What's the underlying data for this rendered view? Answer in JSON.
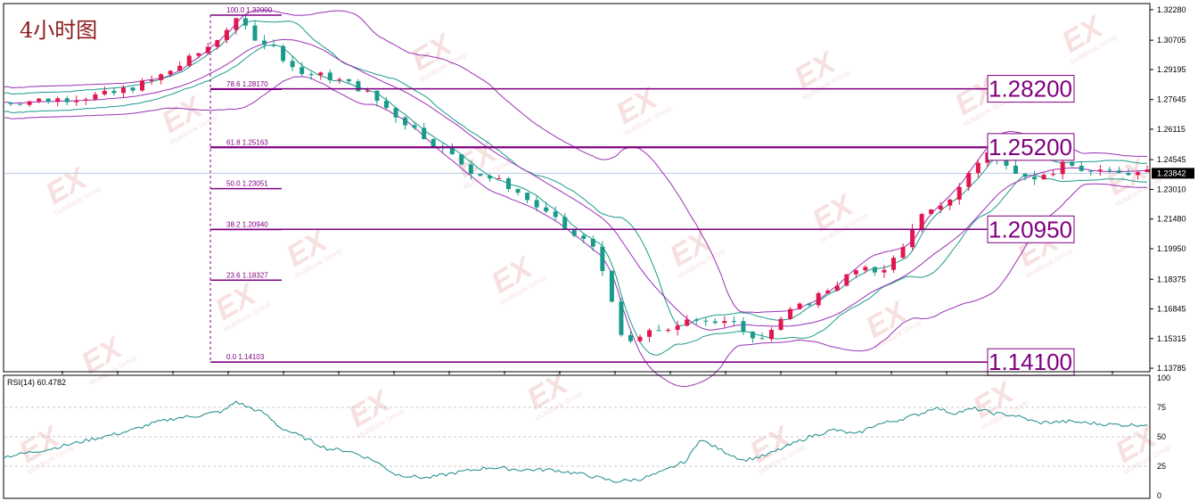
{
  "title": "4小时图",
  "watermark": {
    "text": "EX",
    "sub": "MultiBank Group",
    "color": "#f0c8c8"
  },
  "colors": {
    "bull": "#e0174f",
    "bear": "#1a9a8a",
    "fib": "#800080",
    "band_outer": "#9b30b5",
    "band_inner": "#1a9a8a",
    "rsi": "#1a8a8a",
    "grid": "#c8c8c8",
    "current": "#000000"
  },
  "price_axis": {
    "ticks": [
      "1.32280",
      "1.30705",
      "1.29195",
      "1.27645",
      "1.26115",
      "1.24545",
      "1.23010",
      "1.21480",
      "1.19950",
      "1.18375",
      "1.16845",
      "1.15315",
      "1.13785"
    ],
    "current": "1.23842"
  },
  "fib_levels": [
    {
      "label": "100.0  1.32000",
      "value": 1.32
    },
    {
      "label": "78.6  1.28170",
      "value": 1.2817
    },
    {
      "label": "61.8  1.25163",
      "value": 1.25163
    },
    {
      "label": "50.0  1.23051",
      "value": 1.23051
    },
    {
      "label": "38.2  1.20940",
      "value": 1.2094
    },
    {
      "label": "23.6  1.18327",
      "value": 1.18327
    },
    {
      "label": "0.0  1.14103",
      "value": 1.14103
    }
  ],
  "key_levels": [
    {
      "label": "1.28200",
      "value": 1.282
    },
    {
      "label": "1.25200",
      "value": 1.252
    },
    {
      "label": "1.20950",
      "value": 1.2095
    },
    {
      "label": "1.14100",
      "value": 1.141
    }
  ],
  "rsi": {
    "label": "RSI(14) 60.4782",
    "ticks": [
      "100",
      "75",
      "50",
      "25",
      "0"
    ],
    "levels": [
      75,
      50,
      25
    ]
  },
  "chart_data": {
    "type": "candlestick",
    "timeframe_label": "4小时图",
    "y_range": [
      1.1365,
      1.3255
    ],
    "fibonacci": [
      1.32,
      1.2817,
      1.25163,
      1.23051,
      1.2094,
      1.18327,
      1.14103
    ],
    "horizontal_levels": [
      1.282,
      1.252,
      1.2095,
      1.141
    ],
    "last_price": 1.23842,
    "close_path": [
      [
        0,
        1.275
      ],
      [
        20,
        1.277
      ],
      [
        35,
        1.279
      ],
      [
        40,
        1.282
      ],
      [
        48,
        1.286
      ],
      [
        60,
        1.297
      ],
      [
        67,
        1.305
      ],
      [
        73,
        1.315
      ],
      [
        76,
        1.317
      ],
      [
        80,
        1.31
      ],
      [
        88,
        1.302
      ],
      [
        95,
        1.29
      ],
      [
        105,
        1.288
      ],
      [
        115,
        1.282
      ],
      [
        128,
        1.266
      ],
      [
        140,
        1.252
      ],
      [
        150,
        1.24
      ],
      [
        162,
        1.232
      ],
      [
        172,
        1.22
      ],
      [
        183,
        1.206
      ],
      [
        190,
        1.2
      ],
      [
        193,
        1.185
      ],
      [
        197,
        1.155
      ],
      [
        203,
        1.15
      ],
      [
        208,
        1.16
      ],
      [
        214,
        1.155
      ],
      [
        220,
        1.165
      ],
      [
        228,
        1.162
      ],
      [
        235,
        1.16
      ],
      [
        240,
        1.155
      ],
      [
        244,
        1.155
      ],
      [
        250,
        1.165
      ],
      [
        256,
        1.17
      ],
      [
        265,
        1.18
      ],
      [
        273,
        1.188
      ],
      [
        280,
        1.188
      ],
      [
        287,
        1.196
      ],
      [
        292,
        1.215
      ],
      [
        300,
        1.22
      ],
      [
        310,
        1.24
      ],
      [
        315,
        1.25
      ],
      [
        320,
        1.242
      ],
      [
        325,
        1.24
      ],
      [
        332,
        1.236
      ],
      [
        340,
        1.243
      ],
      [
        350,
        1.238
      ],
      [
        358,
        1.24
      ],
      [
        365,
        1.2384
      ]
    ],
    "rsi_path": [
      [
        0,
        33
      ],
      [
        15,
        40
      ],
      [
        28,
        48
      ],
      [
        40,
        55
      ],
      [
        48,
        62
      ],
      [
        55,
        66
      ],
      [
        62,
        68
      ],
      [
        70,
        72
      ],
      [
        74,
        80
      ],
      [
        78,
        75
      ],
      [
        83,
        70
      ],
      [
        88,
        58
      ],
      [
        95,
        50
      ],
      [
        103,
        40
      ],
      [
        110,
        38
      ],
      [
        118,
        30
      ],
      [
        125,
        18
      ],
      [
        135,
        15
      ],
      [
        145,
        20
      ],
      [
        155,
        24
      ],
      [
        165,
        22
      ],
      [
        175,
        22
      ],
      [
        185,
        18
      ],
      [
        195,
        12
      ],
      [
        203,
        14
      ],
      [
        210,
        20
      ],
      [
        218,
        30
      ],
      [
        222,
        48
      ],
      [
        228,
        40
      ],
      [
        236,
        30
      ],
      [
        243,
        34
      ],
      [
        250,
        42
      ],
      [
        257,
        50
      ],
      [
        265,
        56
      ],
      [
        272,
        52
      ],
      [
        278,
        60
      ],
      [
        285,
        64
      ],
      [
        293,
        70
      ],
      [
        297,
        75
      ],
      [
        303,
        70
      ],
      [
        310,
        74
      ],
      [
        316,
        70
      ],
      [
        323,
        68
      ],
      [
        330,
        62
      ],
      [
        340,
        63
      ],
      [
        350,
        61
      ],
      [
        358,
        60
      ],
      [
        365,
        60.5
      ]
    ],
    "rsi_current": 60.4782
  }
}
